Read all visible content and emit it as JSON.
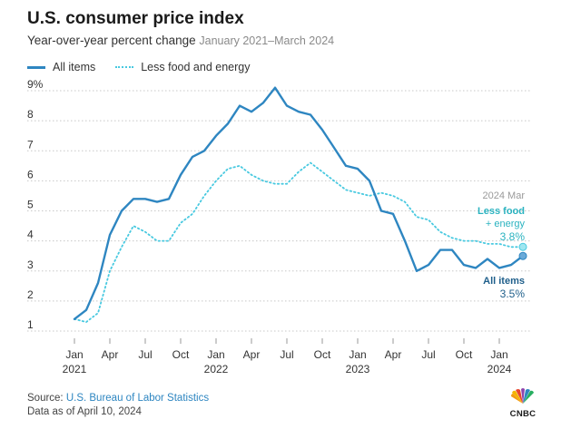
{
  "header": {
    "title": "U.S. consumer price index",
    "subtitle": "Year-over-year percent change",
    "date_range": "January 2021–March 2024"
  },
  "legend": {
    "all_items": "All items",
    "core": "Less food and energy"
  },
  "colors": {
    "all_items": "#2e86c1",
    "core": "#48c9e0",
    "grid": "#c8c8c8",
    "core_label": "#2bb3c0",
    "all_label": "#1f5f8b"
  },
  "annotations": {
    "date": "2024 Mar",
    "core_line1": "Less food",
    "core_line2": "+ energy",
    "core_value": "3.8%",
    "all_name": "All items",
    "all_value": "3.5%"
  },
  "footer": {
    "source_prefix": "Source: ",
    "source_name": "U.S. Bureau of Labor Statistics",
    "data_note": "Data as of April 10, 2024"
  },
  "logo": {
    "text": "CNBC"
  },
  "chart_data": {
    "type": "line",
    "title": "U.S. consumer price index",
    "subtitle": "Year-over-year percent change January 2021–March 2024",
    "xlabel": "",
    "ylabel": "",
    "ylim": [
      1,
      9
    ],
    "yticks": [
      "1",
      "2",
      "3",
      "4",
      "5",
      "6",
      "7",
      "8",
      "9%"
    ],
    "ytick_values": [
      1,
      2,
      3,
      4,
      5,
      6,
      7,
      8,
      9
    ],
    "x": [
      "2021-01",
      "2021-02",
      "2021-03",
      "2021-04",
      "2021-05",
      "2021-06",
      "2021-07",
      "2021-08",
      "2021-09",
      "2021-10",
      "2021-11",
      "2021-12",
      "2022-01",
      "2022-02",
      "2022-03",
      "2022-04",
      "2022-05",
      "2022-06",
      "2022-07",
      "2022-08",
      "2022-09",
      "2022-10",
      "2022-11",
      "2022-12",
      "2023-01",
      "2023-02",
      "2023-03",
      "2023-04",
      "2023-05",
      "2023-06",
      "2023-07",
      "2023-08",
      "2023-09",
      "2023-10",
      "2023-11",
      "2023-12",
      "2024-01",
      "2024-02",
      "2024-03"
    ],
    "xticks": [
      {
        "index": 0,
        "label": "Jan",
        "year": "2021"
      },
      {
        "index": 3,
        "label": "Apr",
        "year": ""
      },
      {
        "index": 6,
        "label": "Jul",
        "year": ""
      },
      {
        "index": 9,
        "label": "Oct",
        "year": ""
      },
      {
        "index": 12,
        "label": "Jan",
        "year": "2022"
      },
      {
        "index": 15,
        "label": "Apr",
        "year": ""
      },
      {
        "index": 18,
        "label": "Jul",
        "year": ""
      },
      {
        "index": 21,
        "label": "Oct",
        "year": ""
      },
      {
        "index": 24,
        "label": "Jan",
        "year": "2023"
      },
      {
        "index": 27,
        "label": "Apr",
        "year": ""
      },
      {
        "index": 30,
        "label": "Jul",
        "year": ""
      },
      {
        "index": 33,
        "label": "Oct",
        "year": ""
      },
      {
        "index": 36,
        "label": "Jan",
        "year": "2024"
      }
    ],
    "series": [
      {
        "name": "All items",
        "style": "solid",
        "values": [
          1.4,
          1.7,
          2.6,
          4.2,
          5.0,
          5.4,
          5.4,
          5.3,
          5.4,
          6.2,
          6.8,
          7.0,
          7.5,
          7.9,
          8.5,
          8.3,
          8.6,
          9.1,
          8.5,
          8.3,
          8.2,
          7.7,
          7.1,
          6.5,
          6.4,
          6.0,
          5.0,
          4.9,
          4.0,
          3.0,
          3.2,
          3.7,
          3.7,
          3.2,
          3.1,
          3.4,
          3.1,
          3.2,
          3.5
        ]
      },
      {
        "name": "Less food and energy",
        "style": "dotted",
        "values": [
          1.4,
          1.3,
          1.6,
          3.0,
          3.8,
          4.5,
          4.3,
          4.0,
          4.0,
          4.6,
          4.9,
          5.5,
          6.0,
          6.4,
          6.5,
          6.2,
          6.0,
          5.9,
          5.9,
          6.3,
          6.6,
          6.3,
          6.0,
          5.7,
          5.6,
          5.5,
          5.6,
          5.5,
          5.3,
          4.8,
          4.7,
          4.3,
          4.1,
          4.0,
          4.0,
          3.9,
          3.9,
          3.8,
          3.8
        ]
      }
    ]
  }
}
